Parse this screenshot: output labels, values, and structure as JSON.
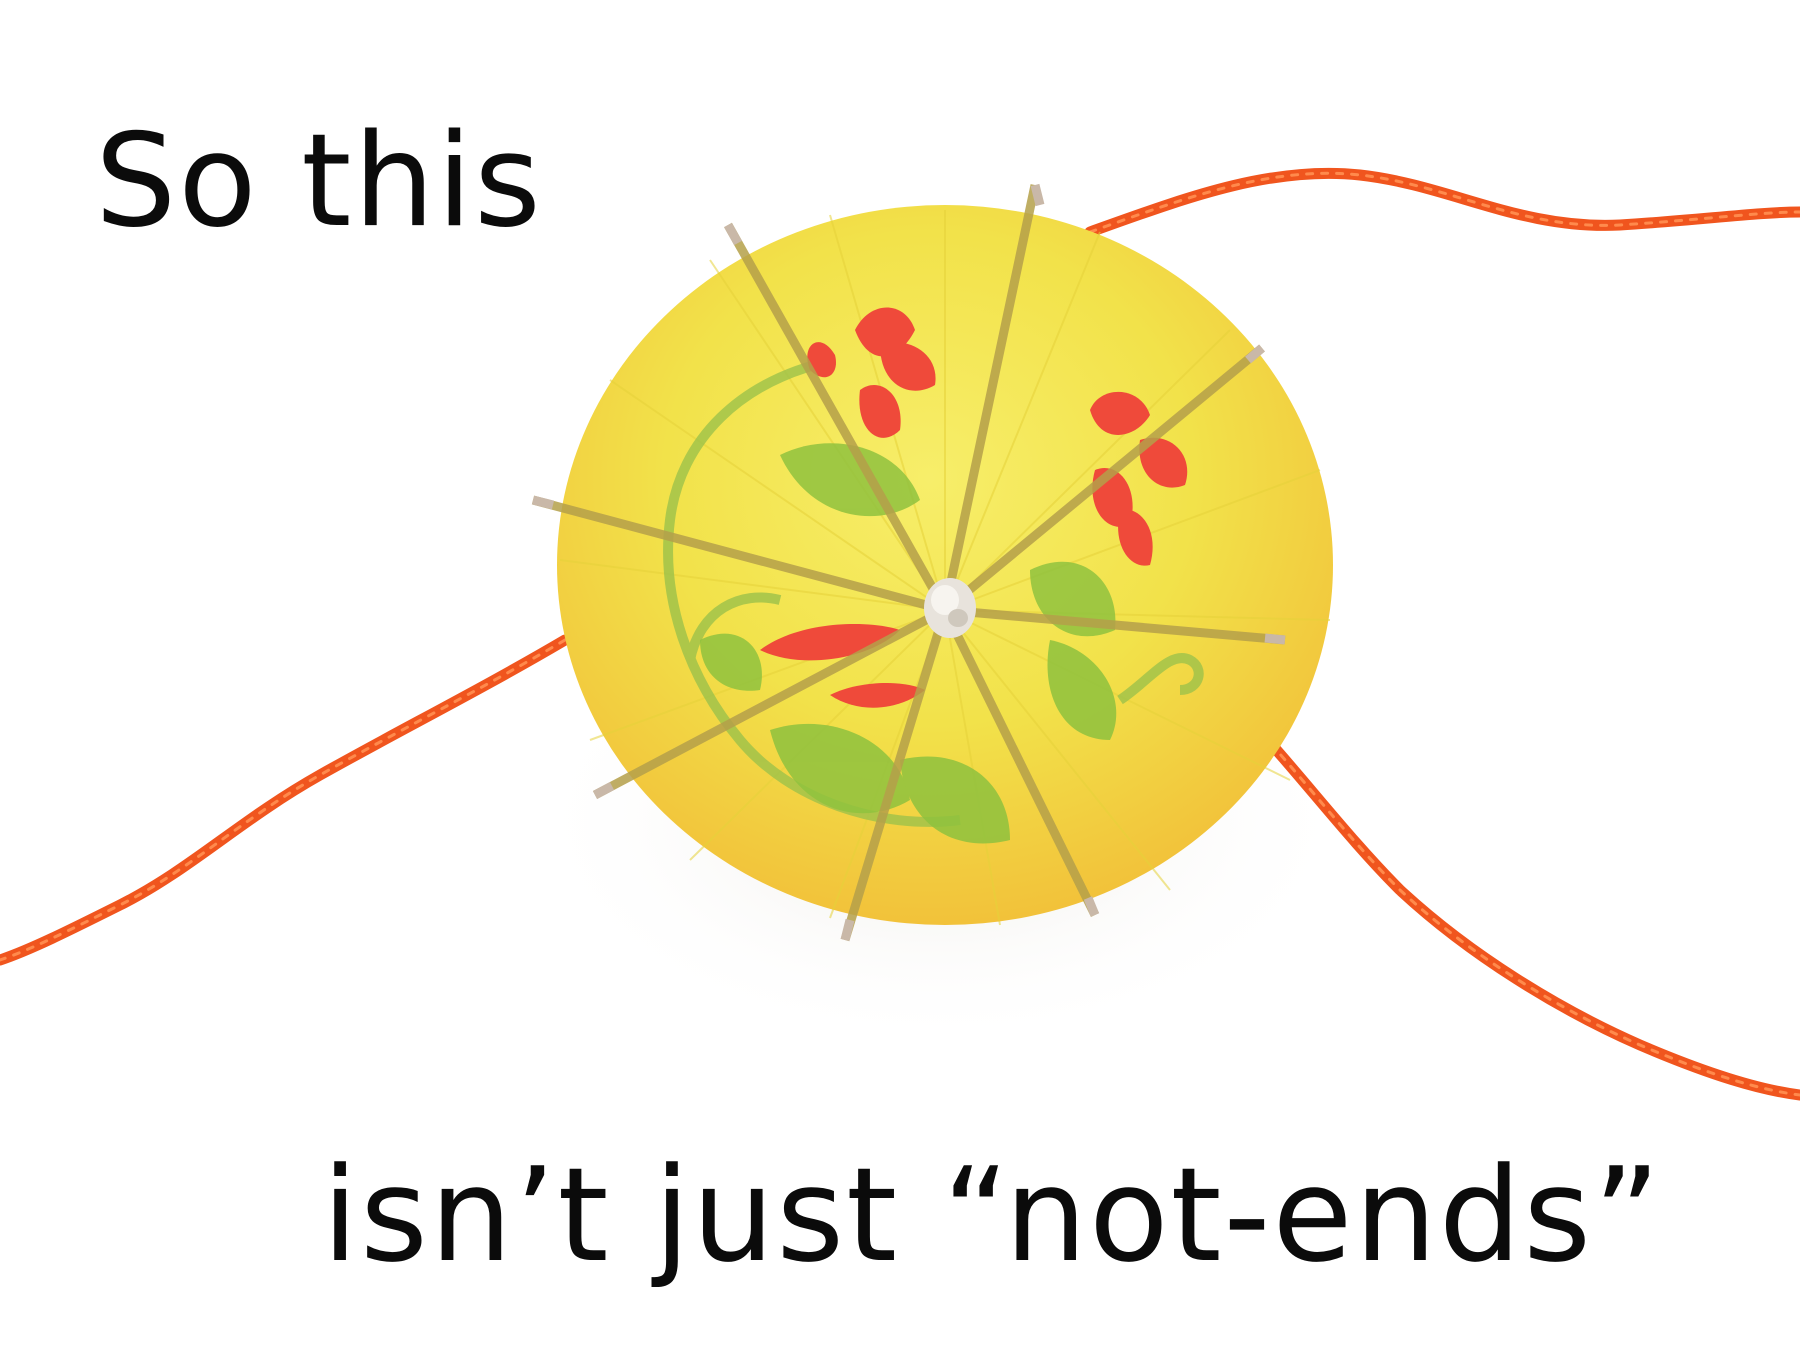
{
  "caption_top": "So this",
  "caption_bottom": "isn’t just “not-ends”",
  "colors": {
    "background": "#ffffff",
    "text": "#0b0b0b",
    "string": "#f0551e",
    "umbrella_yellow": "#f2e24a",
    "umbrella_deep": "#f2c93a",
    "flower_red": "#ef4a3a",
    "leaf_green": "#8fc23e",
    "rib": "#b5a04a"
  }
}
